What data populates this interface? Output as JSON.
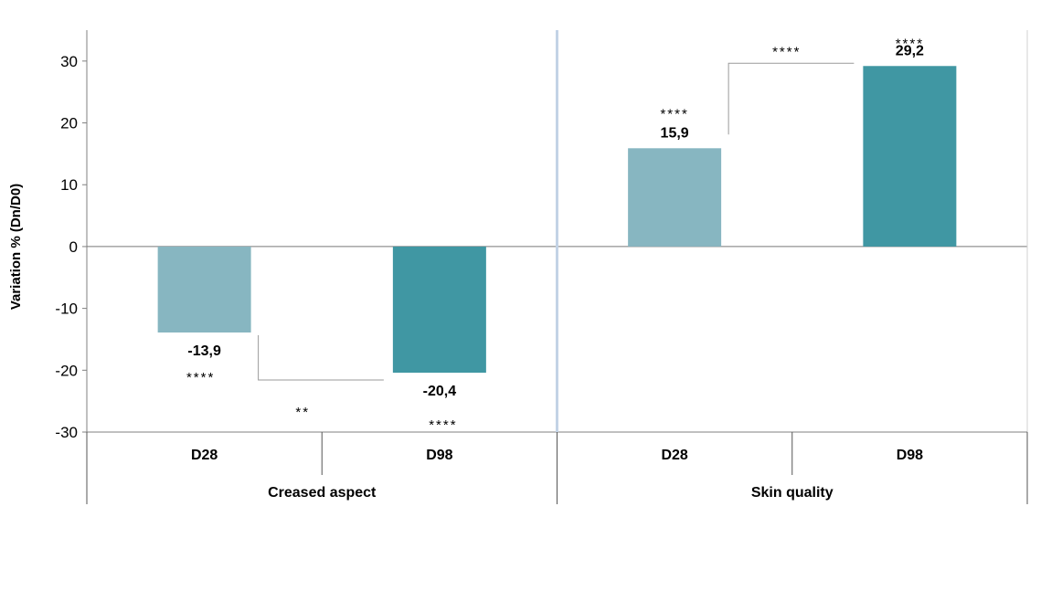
{
  "chart_data": {
    "type": "bar",
    "ylabel": "Variation % (Dn/D0)",
    "ylim": [
      -30,
      35
    ],
    "yticks": [
      30,
      20,
      10,
      0,
      -10,
      -20,
      -30
    ],
    "grid": false,
    "groups": [
      {
        "name": "Creased aspect",
        "bars": [
          {
            "category": "D28",
            "value": -13.9,
            "label": "-13,9",
            "color": "#87b6c1",
            "significance": "****"
          },
          {
            "category": "D98",
            "value": -20.4,
            "label": "-20,4",
            "color": "#4097a3",
            "significance": "****"
          }
        ],
        "comparison": "**"
      },
      {
        "name": "Skin quality",
        "bars": [
          {
            "category": "D28",
            "value": 15.9,
            "label": "15,9",
            "color": "#87b6c1",
            "significance": "****"
          },
          {
            "category": "D98",
            "value": 29.2,
            "label": "29,2",
            "color": "#4097a3",
            "significance": "****"
          }
        ],
        "comparison": "****"
      }
    ]
  }
}
